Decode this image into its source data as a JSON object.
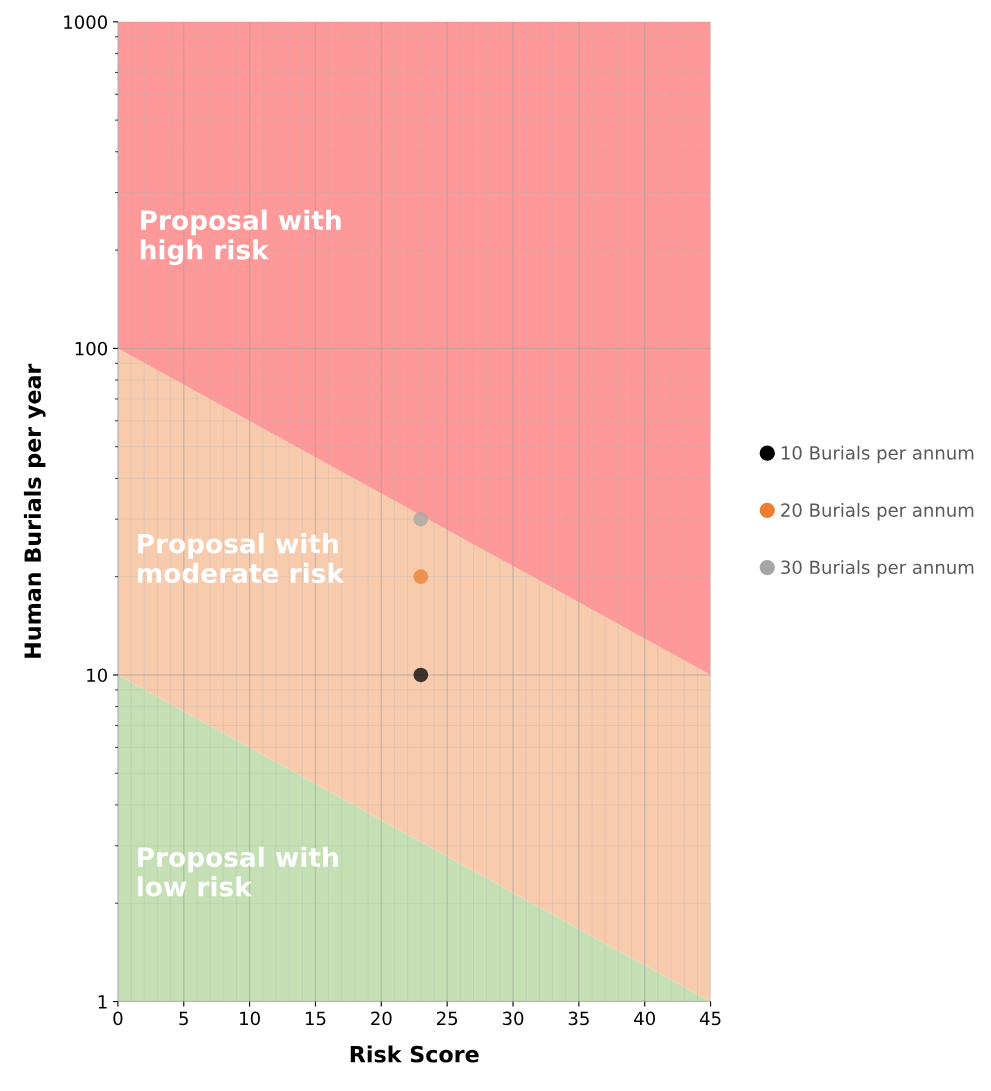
{
  "chart_data": {
    "type": "area",
    "xlabel": "Risk Score",
    "ylabel": "Human Burials per year",
    "xlim": [
      0,
      45
    ],
    "xticks": [
      0,
      5,
      10,
      15,
      20,
      25,
      30,
      35,
      40,
      45
    ],
    "ylim": [
      1,
      1000
    ],
    "yticks": [
      1,
      10,
      100,
      1000
    ],
    "log": "y",
    "grid": true,
    "legend": "right",
    "stacked": true,
    "series": [
      {
        "color": "#c5e0b4",
        "x": [
          0,
          45
        ],
        "values": [
          10,
          1
        ]
      },
      {
        "color": "#f8cbad",
        "x": [
          0,
          45
        ],
        "values": [
          90,
          9
        ]
      },
      {
        "color": "#ff9999",
        "x": [
          0,
          45
        ],
        "values": [
          900,
          990
        ]
      },
      {
        "type": "scatter",
        "marker": "circle",
        "name": "10 Burials per annum",
        "color": "#000000",
        "x": [
          23
        ],
        "values": [
          10
        ]
      },
      {
        "type": "scatter",
        "marker": "circle",
        "name": "20 Burials per annum",
        "color": "#ed7d31",
        "x": [
          23
        ],
        "values": [
          20
        ]
      },
      {
        "type": "scatter",
        "marker": "circle",
        "name": "30 Burials per annum",
        "color": "#a5a5a5",
        "x": [
          23
        ],
        "values": [
          30
        ]
      }
    ],
    "annotations": [
      "Proposal with\nhigh risk",
      "Proposal with\nmoderate risk",
      "Proposal with\nlow risk"
    ]
  }
}
